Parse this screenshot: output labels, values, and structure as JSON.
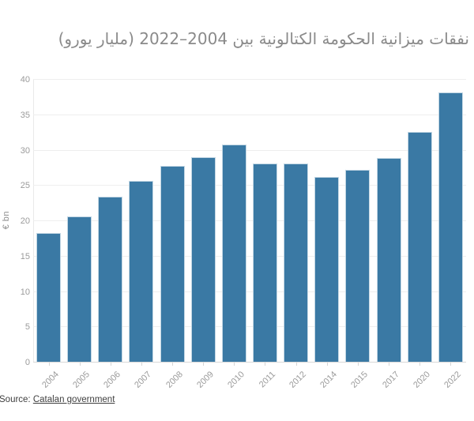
{
  "title": "نفقات ميزانية الحكومة الكتالونية بين 2004–2022 (مليار يورو)",
  "source": {
    "prefix": "Source: ",
    "link_label": "Catalan government"
  },
  "chart_data": {
    "type": "bar",
    "title": "نفقات ميزانية الحكومة الكتالونية بين 2004–2022 (مليار يورو)",
    "categories": [
      "2004",
      "2005",
      "2006",
      "2007",
      "2008",
      "2009",
      "2010",
      "2011",
      "2012",
      "2014",
      "2015",
      "2017",
      "2020",
      "2022"
    ],
    "values": [
      18.2,
      20.6,
      23.3,
      25.6,
      27.7,
      28.9,
      30.7,
      28.1,
      28.0,
      26.1,
      27.2,
      28.8,
      32.5,
      38.1
    ],
    "xlabel": "",
    "ylabel": "€ bn",
    "ylim": [
      0,
      40
    ],
    "ytick_step": 5,
    "yticks": [
      0,
      5,
      10,
      15,
      20,
      25,
      30,
      35,
      40
    ],
    "grid": true,
    "legend": false,
    "bar_color": "#3a79a4",
    "bar_border_color": "#c3d7e4",
    "title_color": "#8a8a8a",
    "axis_label_color": "#9b9b9b"
  }
}
